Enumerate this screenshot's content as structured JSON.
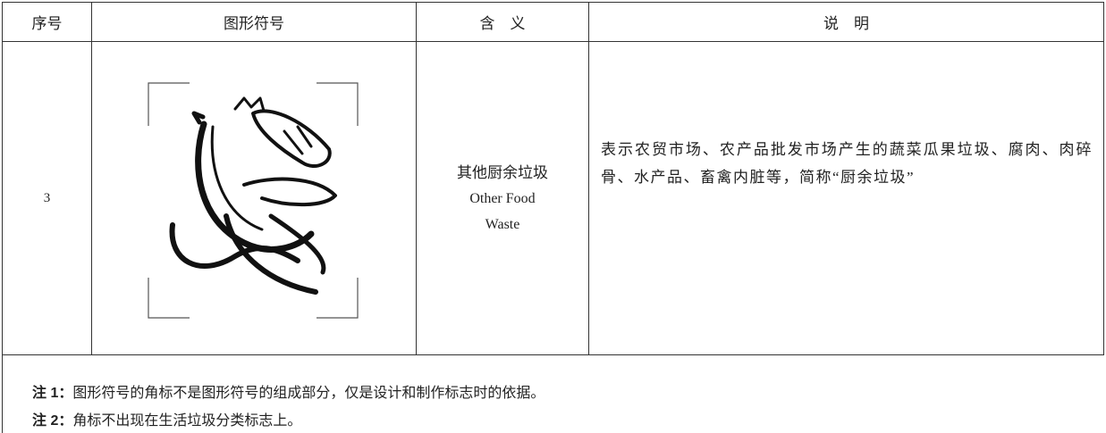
{
  "header": {
    "columns": [
      "序号",
      "图形符号",
      "含　义",
      "说　明"
    ]
  },
  "table": {
    "rows": [
      {
        "number": "3",
        "meaning": [
          "其他厨余垃圾",
          "Other Food",
          "Waste"
        ],
        "description": "表示农贸市场、农产品批发市场产生的蔬菜瓜果垃圾、腐肉、肉碎骨、水产品、畜禽内脏等，简称“厨余垃圾”"
      }
    ]
  },
  "notes": [
    {
      "label": "注 1：",
      "text": "图形符号的角标不是图形符号的组成部分，仅是设计和制作标志时的依据。"
    },
    {
      "label": "注 2：",
      "text": "角标不出现在生活垃圾分类标志上。"
    }
  ]
}
